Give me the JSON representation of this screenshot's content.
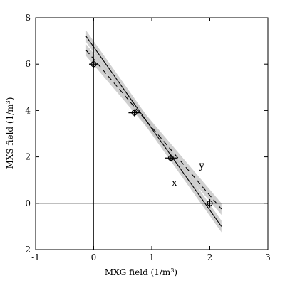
{
  "chart_data": {
    "type": "scatter",
    "xlabel_main": "MXG field  (1/m",
    "xlabel_sup": "3",
    "xlabel_tail": ")",
    "ylabel_main": "MXS field  (1/m",
    "ylabel_sup": "3",
    "ylabel_tail": ")",
    "xlim": [
      -1,
      3
    ],
    "ylim": [
      -2,
      8
    ],
    "xticks": [
      -1,
      0,
      1,
      2,
      3
    ],
    "yticks": [
      -2,
      0,
      2,
      4,
      6,
      8
    ],
    "zero_lines": true,
    "points": [
      {
        "x": 0.0,
        "y": 6.0,
        "xerr": 0.08,
        "yerr": 0.18
      },
      {
        "x": 0.7,
        "y": 3.9,
        "xerr": 0.1,
        "yerr": 0.15
      },
      {
        "x": 1.33,
        "y": 1.95,
        "xerr": 0.1,
        "yerr": 0.15
      },
      {
        "x": 2.0,
        "y": 0.0,
        "xerr": 0.05,
        "yerr": 0.18
      }
    ],
    "fits": [
      {
        "name": "x",
        "style": "solid",
        "x0": -0.13,
        "y0": 7.2,
        "x1": 2.2,
        "y1": -1.0,
        "band": 0.25
      },
      {
        "name": "y",
        "style": "dashed",
        "x0": -0.13,
        "y0": 6.6,
        "x1": 2.2,
        "y1": -0.25,
        "band": 0.25
      }
    ],
    "labels": [
      {
        "text": "x",
        "x": 1.39,
        "y": 0.75
      },
      {
        "text": "y",
        "x": 1.86,
        "y": 1.5
      }
    ]
  }
}
